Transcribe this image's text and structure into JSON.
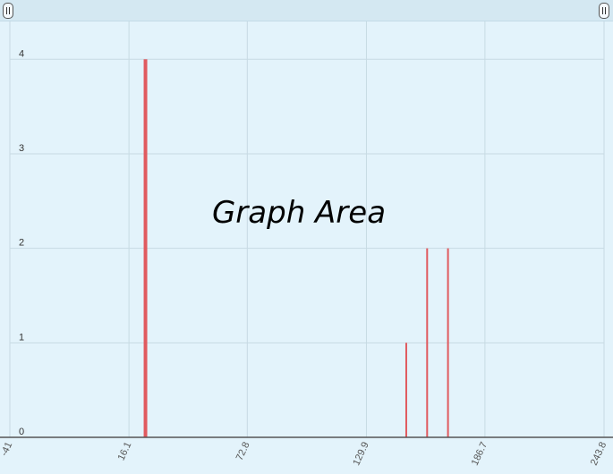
{
  "overlay_label": "Graph Area",
  "colors": {
    "background": "#e3f3fb",
    "bar": "#e05a5f",
    "grid": "#c7dae3",
    "axis": "#555555"
  },
  "controls": {
    "left_handle_icon": "range-handle-icon",
    "right_handle_icon": "range-handle-icon"
  },
  "chart_data": {
    "type": "bar",
    "title": "",
    "xlabel": "",
    "ylabel": "",
    "xlim": [
      -41,
      243.8
    ],
    "ylim": [
      0,
      4.4
    ],
    "x_ticks": [
      -41,
      16.1,
      72.8,
      129.9,
      186.7,
      243.8
    ],
    "x_tick_labels": [
      "-41",
      "16.1",
      "72.8",
      "129.9",
      "186.7",
      "243.8"
    ],
    "y_ticks": [
      0,
      1,
      2,
      3,
      4
    ],
    "y_tick_labels": [
      "0",
      "1",
      "2",
      "3",
      "4"
    ],
    "grid": true,
    "legend": "none",
    "bars": [
      {
        "x": 24,
        "value": 4,
        "thick": true
      },
      {
        "x": 149,
        "value": 1,
        "thick": false
      },
      {
        "x": 159,
        "value": 2,
        "thick": false
      },
      {
        "x": 169,
        "value": 2,
        "thick": false
      }
    ]
  }
}
